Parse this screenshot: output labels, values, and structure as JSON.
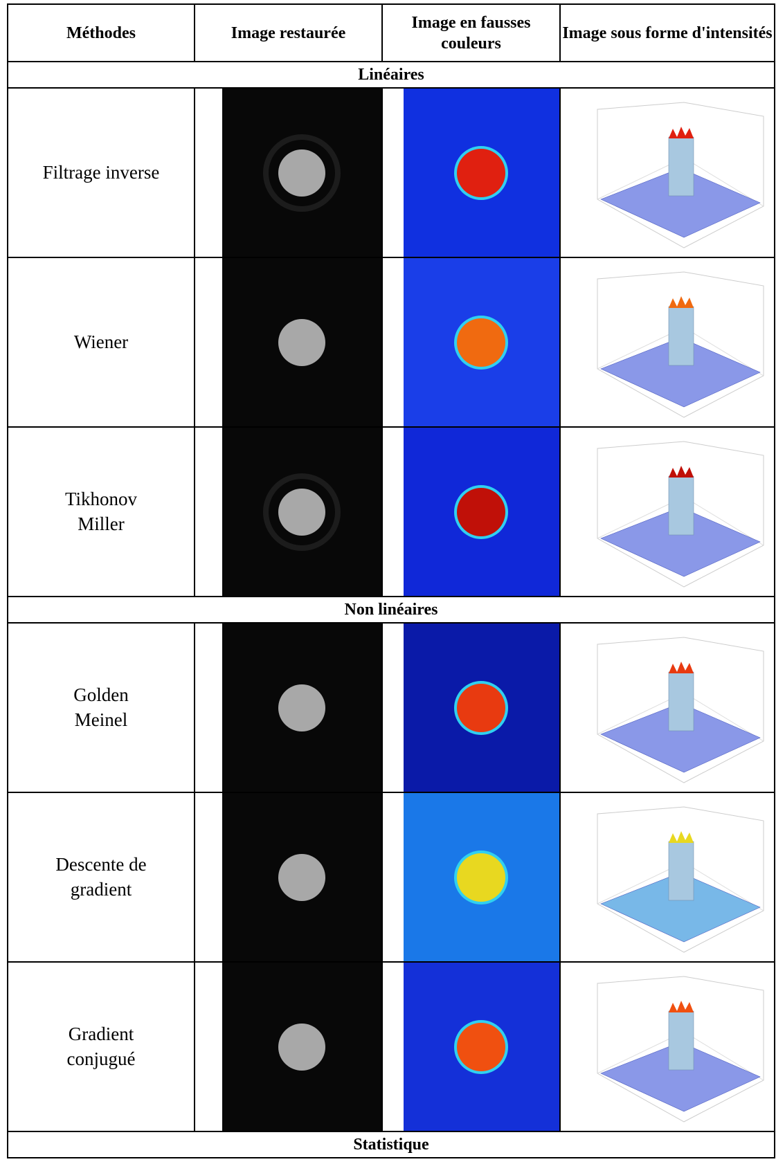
{
  "header": {
    "columns": [
      "Méthodes",
      "Image restaurée",
      "Image en fausses couleurs",
      "Image sous forme d'intensités"
    ]
  },
  "sections": [
    {
      "title": "Linéaires",
      "rows": [
        {
          "method": "Filtrage inverse"
        },
        {
          "method": "Wiener"
        },
        {
          "method": "Tikhonov\nMiller"
        }
      ]
    },
    {
      "title": "Non linéaires",
      "rows": [
        {
          "method": "Golden\nMeinel"
        },
        {
          "method": "Descente de\ngradient"
        },
        {
          "method": "Gradient\nconjugué"
        }
      ]
    },
    {
      "title": "Statistique",
      "rows": []
    }
  ]
}
